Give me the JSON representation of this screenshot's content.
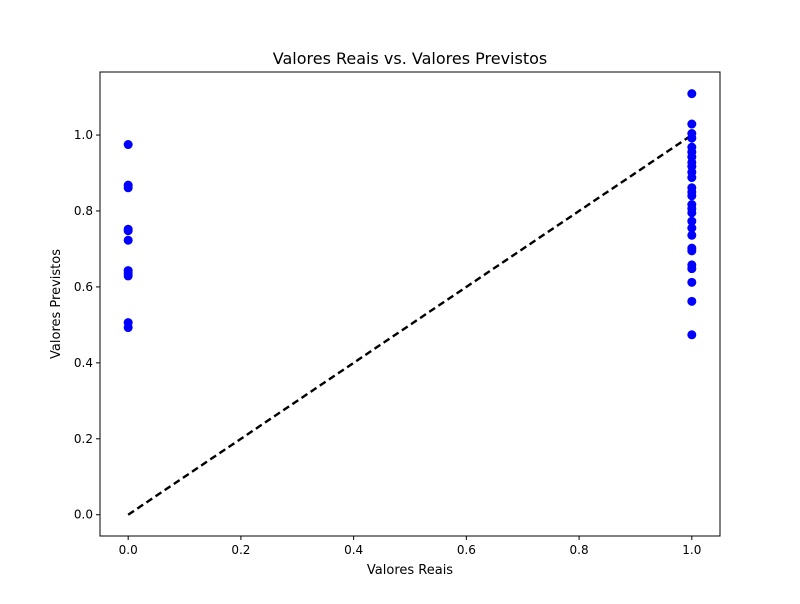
{
  "chart_data": {
    "type": "scatter",
    "title": "Valores Reais vs. Valores Previstos",
    "xlabel": "Valores Reais",
    "ylabel": "Valores Previstos",
    "xlim": [
      -0.05,
      1.05
    ],
    "ylim": [
      -0.056,
      1.166
    ],
    "xticks": [
      0.0,
      0.2,
      0.4,
      0.6,
      0.8,
      1.0
    ],
    "yticks": [
      0.0,
      0.2,
      0.4,
      0.6,
      0.8,
      1.0
    ],
    "xtick_labels": [
      "0.0",
      "0.2",
      "0.4",
      "0.6",
      "0.8",
      "1.0"
    ],
    "ytick_labels": [
      "0.0",
      "0.2",
      "0.4",
      "0.6",
      "0.8",
      "1.0"
    ],
    "grid": false,
    "point_color": "#0000ff",
    "reference_line": {
      "x": [
        0,
        1
      ],
      "y": [
        0,
        1
      ],
      "style": "dashed",
      "color": "#000000"
    },
    "points": [
      {
        "x": 0,
        "y": 0.975
      },
      {
        "x": 0,
        "y": 0.868
      },
      {
        "x": 0,
        "y": 0.861
      },
      {
        "x": 0,
        "y": 0.752
      },
      {
        "x": 0,
        "y": 0.748
      },
      {
        "x": 0,
        "y": 0.723
      },
      {
        "x": 0,
        "y": 0.643
      },
      {
        "x": 0,
        "y": 0.636
      },
      {
        "x": 0,
        "y": 0.629
      },
      {
        "x": 0,
        "y": 0.506
      },
      {
        "x": 0,
        "y": 0.493
      },
      {
        "x": 1,
        "y": 1.109
      },
      {
        "x": 1,
        "y": 1.029
      },
      {
        "x": 1,
        "y": 1.004
      },
      {
        "x": 1,
        "y": 0.992
      },
      {
        "x": 1,
        "y": 0.968
      },
      {
        "x": 1,
        "y": 0.955
      },
      {
        "x": 1,
        "y": 0.942
      },
      {
        "x": 1,
        "y": 0.928
      },
      {
        "x": 1,
        "y": 0.917
      },
      {
        "x": 1,
        "y": 0.902
      },
      {
        "x": 1,
        "y": 0.888
      },
      {
        "x": 1,
        "y": 0.861
      },
      {
        "x": 1,
        "y": 0.85
      },
      {
        "x": 1,
        "y": 0.84
      },
      {
        "x": 1,
        "y": 0.817
      },
      {
        "x": 1,
        "y": 0.806
      },
      {
        "x": 1,
        "y": 0.795
      },
      {
        "x": 1,
        "y": 0.773
      },
      {
        "x": 1,
        "y": 0.755
      },
      {
        "x": 1,
        "y": 0.736
      },
      {
        "x": 1,
        "y": 0.702
      },
      {
        "x": 1,
        "y": 0.695
      },
      {
        "x": 1,
        "y": 0.658
      },
      {
        "x": 1,
        "y": 0.648
      },
      {
        "x": 1,
        "y": 0.612
      },
      {
        "x": 1,
        "y": 0.562
      },
      {
        "x": 1,
        "y": 0.474
      }
    ]
  }
}
